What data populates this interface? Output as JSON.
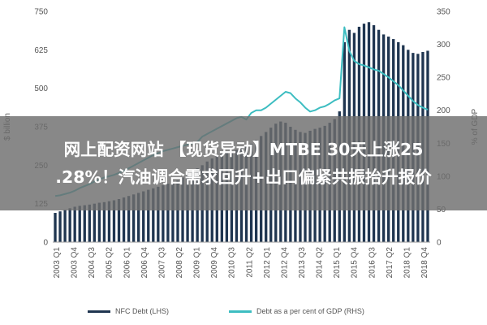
{
  "chart_data": {
    "type": "bar+line",
    "title": "",
    "ylabel_left": "$ billion",
    "ylabel_right": "% of GDP",
    "ylim_left": [
      0,
      750
    ],
    "ylim_right": [
      0,
      350
    ],
    "left_ticks": [
      "0",
      "125",
      "250",
      "375",
      "500",
      "625",
      "750"
    ],
    "right_ticks": [
      "0",
      "50",
      "100",
      "150",
      "200",
      "250",
      "300",
      "350"
    ],
    "x_tick_labels": [
      "2003 Q1",
      "2003 Q4",
      "2004 Q3",
      "2005 Q2",
      "2006 Q1",
      "2006 Q4",
      "2007 Q3",
      "2008 Q2",
      "2009 Q1",
      "2009 Q4",
      "2010 Q3",
      "2011 Q2",
      "2012 Q1",
      "2012 Q4",
      "2013 Q3",
      "2014 Q2",
      "2015 Q1",
      "2015 Q4",
      "2016 Q3",
      "2017 Q2",
      "2018 Q1",
      "2018 Q4"
    ],
    "series": [
      {
        "name": "NFC Debt (LHS)",
        "kind": "bar",
        "axis": "left",
        "color": "#1f3550",
        "values": [
          95,
          100,
          105,
          110,
          115,
          118,
          120,
          122,
          125,
          128,
          130,
          133,
          136,
          140,
          145,
          150,
          155,
          160,
          165,
          170,
          175,
          180,
          185,
          190,
          195,
          200,
          210,
          220,
          230,
          240,
          250,
          262,
          272,
          280,
          288,
          292,
          296,
          300,
          305,
          310,
          320,
          332,
          345,
          358,
          372,
          385,
          392,
          388,
          375,
          365,
          358,
          355,
          362,
          368,
          372,
          378,
          388,
          400,
          425,
          650,
          690,
          680,
          700,
          710,
          715,
          705,
          690,
          675,
          668,
          660,
          650,
          640,
          625,
          615,
          612,
          618,
          622
        ]
      },
      {
        "name": "Debt as a per cent of GDP (RHS)",
        "kind": "line",
        "axis": "right",
        "color": "#3dbdc1",
        "values": [
          70,
          71,
          73,
          75,
          78,
          82,
          85,
          88,
          92,
          95,
          98,
          100,
          102,
          105,
          108,
          112,
          116,
          120,
          124,
          128,
          132,
          135,
          138,
          140,
          142,
          144,
          146,
          148,
          150,
          152,
          160,
          164,
          168,
          172,
          176,
          180,
          184,
          188,
          190,
          186,
          196,
          200,
          200,
          204,
          210,
          216,
          222,
          228,
          226,
          218,
          212,
          204,
          198,
          200,
          204,
          206,
          210,
          215,
          218,
          326,
          290,
          275,
          270,
          268,
          265,
          262,
          260,
          255,
          250,
          244,
          238,
          230,
          222,
          214,
          208,
          204,
          201
        ]
      }
    ],
    "legend_position": "bottom",
    "grid": false
  },
  "overlay": {
    "line1": "网上配资网站 【现货异动】MTBE 30天上涨25",
    "line2": ".28%！汽油调合需求回升+出口偏紧共振抬升报价"
  }
}
